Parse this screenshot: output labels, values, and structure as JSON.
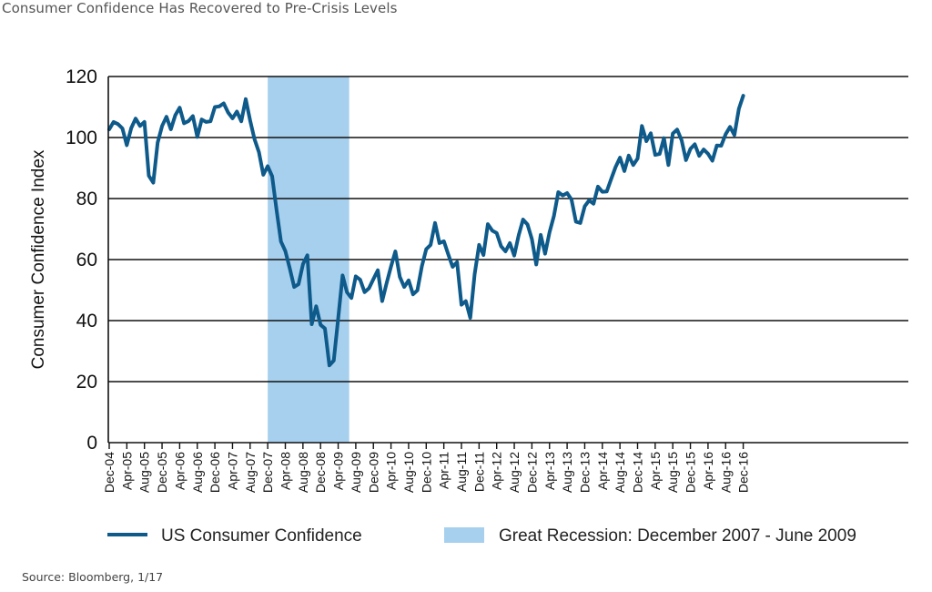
{
  "header": {
    "title": "Consumer Confidence Has Recovered to Pre-Crisis Levels"
  },
  "footer": {
    "source": "Source: Bloomberg, 1/17"
  },
  "colors": {
    "line": "#0e5a8a",
    "recession": "#a7d0ef",
    "grid": "#111111"
  },
  "chart_data": {
    "type": "line",
    "ylabel": "Consumer Confidence Index",
    "xlabel": "",
    "ylim": [
      0,
      120
    ],
    "yticks": [
      0,
      20,
      40,
      60,
      80,
      100,
      120
    ],
    "grid": "horizontal",
    "legend_position": "bottom",
    "x_tick_labels": [
      "Dec-04",
      "Apr-05",
      "Aug-05",
      "Dec-05",
      "Apr-06",
      "Aug-06",
      "Dec-06",
      "Apr-07",
      "Aug-07",
      "Dec-07",
      "Apr-08",
      "Aug-08",
      "Dec-08",
      "Apr-09",
      "Aug-09",
      "Dec-09",
      "Apr-10",
      "Aug-10",
      "Dec-10",
      "Apr-11",
      "Aug-11",
      "Dec-11",
      "Apr-12",
      "Aug-12",
      "Dec-12",
      "Apr-13",
      "Aug-13",
      "Dec-13",
      "Apr-14",
      "Aug-14",
      "Dec-14",
      "Apr-15",
      "Aug-15",
      "Dec-15",
      "Apr-16",
      "Aug-16",
      "Dec-16"
    ],
    "x_start": "Dec-04",
    "series": [
      {
        "name": "US Consumer Confidence",
        "values": [
          102.7,
          105.1,
          104.4,
          103.0,
          97.5,
          103.1,
          106.2,
          103.8,
          105.1,
          87.5,
          85.2,
          98.3,
          103.8,
          106.8,
          102.7,
          107.3,
          109.8,
          104.7,
          105.4,
          107.0,
          100.2,
          105.9,
          105.1,
          105.3,
          110.0,
          110.2,
          111.2,
          108.2,
          106.3,
          108.5,
          105.3,
          112.6,
          105.6,
          99.5,
          95.2,
          87.8,
          90.6,
          87.3,
          76.4,
          65.9,
          62.8,
          57.2,
          51.0,
          51.9,
          58.5,
          61.4,
          38.8,
          44.7,
          38.6,
          37.4,
          25.3,
          26.9,
          40.8,
          54.8,
          49.3,
          47.4,
          54.5,
          53.4,
          49.3,
          50.6,
          53.6,
          56.5,
          46.4,
          52.3,
          57.7,
          62.7,
          54.3,
          51.0,
          53.2,
          48.6,
          49.9,
          57.8,
          63.4,
          64.8,
          72.0,
          65.4,
          66.0,
          61.7,
          57.6,
          59.2,
          45.2,
          46.4,
          40.9,
          55.2,
          64.8,
          61.5,
          71.6,
          69.5,
          68.7,
          64.4,
          62.7,
          65.4,
          61.3,
          68.0,
          73.1,
          71.5,
          66.7,
          58.4,
          68.1,
          61.9,
          69.0,
          74.3,
          82.1,
          81.0,
          81.8,
          79.7,
          72.4,
          72.0,
          77.5,
          79.4,
          78.3,
          83.9,
          82.2,
          82.3,
          86.4,
          90.3,
          93.4,
          89.0,
          94.1,
          91.0,
          93.1,
          103.8,
          98.8,
          101.4,
          94.3,
          94.6,
          99.8,
          91.0,
          101.3,
          102.6,
          99.1,
          92.6,
          96.3,
          97.8,
          94.0,
          96.1,
          94.7,
          92.4,
          97.4,
          97.3,
          101.1,
          103.5,
          100.8,
          109.4,
          113.7
        ]
      },
      {
        "name": "Great Recession: December 2007 - June 2009",
        "type": "shaded-region",
        "start": "Dec-07",
        "end": "Jun-09"
      }
    ]
  },
  "legend": {
    "items": [
      {
        "label": "US Consumer Confidence"
      },
      {
        "label": "Great Recession: December 2007 - June 2009"
      }
    ]
  }
}
